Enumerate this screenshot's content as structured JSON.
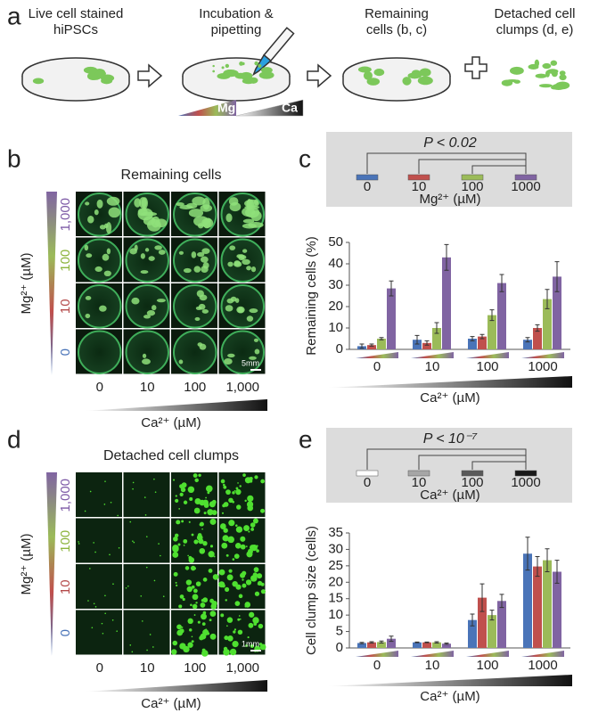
{
  "panel_a": {
    "label": "a",
    "steps": [
      [
        "Live cell stained",
        "hiPSCs"
      ],
      [
        "Incubation &",
        "pipetting"
      ],
      [
        "Remaining",
        "cells (b, c)"
      ],
      [
        "Detached cell",
        "clumps (d, e)"
      ]
    ],
    "gradient_labels": [
      "Mg",
      "Ca"
    ]
  },
  "panel_b": {
    "label": "b",
    "title": "Remaining cells",
    "row_labels": [
      "1,000",
      "100",
      "10",
      "0"
    ],
    "row_label_colors": [
      "#7d5aa6",
      "#8cb43c",
      "#b44a4a",
      "#4a74b8"
    ],
    "column_labels": [
      "0",
      "10",
      "100",
      "1,000"
    ],
    "y_label": "Mg²⁺ (µM)",
    "x_label": "Ca²⁺ (µM)",
    "scale_bar": "5mm"
  },
  "panel_d": {
    "label": "d",
    "title": "Detached cell clumps",
    "row_labels": [
      "1,000",
      "100",
      "10",
      "0"
    ],
    "row_label_colors": [
      "#7d5aa6",
      "#8cb43c",
      "#b44a4a",
      "#4a74b8"
    ],
    "column_labels": [
      "0",
      "10",
      "100",
      "1,000"
    ],
    "y_label": "Mg²⁺ (µM)",
    "x_label": "Ca²⁺ (µM)",
    "scale_bar": "1mm"
  },
  "chart_data": [
    {
      "type": "bar",
      "panel_label": "c",
      "y_label": "Remaining cells (%)",
      "x_label": "Ca²⁺ (µM)",
      "annotation": "P < 0.02",
      "legend": {
        "title": "Mg²⁺ (µM)",
        "labels": [
          "0",
          "10",
          "100",
          "1000"
        ],
        "colors": [
          "#4a74b8",
          "#c0504d",
          "#9bbb59",
          "#8064a2"
        ]
      },
      "categories": [
        "0",
        "10",
        "100",
        "1000"
      ],
      "series": [
        {
          "color": "#4a74b8",
          "values": [
            1.5,
            4.5,
            5,
            4.5
          ],
          "errors": [
            1,
            2,
            1,
            1
          ]
        },
        {
          "color": "#c0504d",
          "values": [
            2,
            3,
            6,
            10
          ],
          "errors": [
            0.5,
            1,
            1,
            1.5
          ]
        },
        {
          "color": "#9bbb59",
          "values": [
            5,
            10,
            16,
            23.5
          ],
          "errors": [
            0.5,
            2.5,
            2.5,
            4.5
          ]
        },
        {
          "color": "#8064a2",
          "values": [
            28.5,
            43,
            31,
            34
          ],
          "errors": [
            3.5,
            6,
            4,
            7
          ]
        }
      ],
      "ylim": [
        0,
        50
      ],
      "yticks": [
        0,
        10,
        20,
        30,
        40,
        50
      ]
    },
    {
      "type": "bar",
      "panel_label": "e",
      "y_label": "Cell clump size (cells)",
      "x_label": "Ca²⁺ (µM)",
      "annotation": "P < 10⁻⁷",
      "legend": {
        "title": "Ca²⁺ (µM)",
        "labels": [
          "0",
          "10",
          "100",
          "1000"
        ],
        "colors": [
          "#ffffff",
          "#a6a6a6",
          "#595959",
          "#1a1a1a"
        ]
      },
      "categories": [
        "0",
        "10",
        "100",
        "1000"
      ],
      "series": [
        {
          "color": "#4a74b8",
          "values": [
            1.5,
            1.7,
            8.5,
            28.7
          ],
          "errors": [
            0.2,
            0.1,
            1.8,
            5
          ]
        },
        {
          "color": "#c0504d",
          "values": [
            1.7,
            1.7,
            15.3,
            24.8
          ],
          "errors": [
            0.2,
            0.1,
            4.2,
            3
          ]
        },
        {
          "color": "#9bbb59",
          "values": [
            1.8,
            1.7,
            10,
            26.7
          ],
          "errors": [
            0.3,
            0.2,
            1.5,
            3.5
          ]
        },
        {
          "color": "#8064a2",
          "values": [
            2.8,
            1.3,
            14.3,
            23.2
          ],
          "errors": [
            0.8,
            0.2,
            2,
            3.5
          ]
        }
      ],
      "ylim": [
        0,
        35
      ],
      "yticks": [
        0,
        5,
        10,
        15,
        20,
        25,
        30,
        35
      ]
    }
  ]
}
